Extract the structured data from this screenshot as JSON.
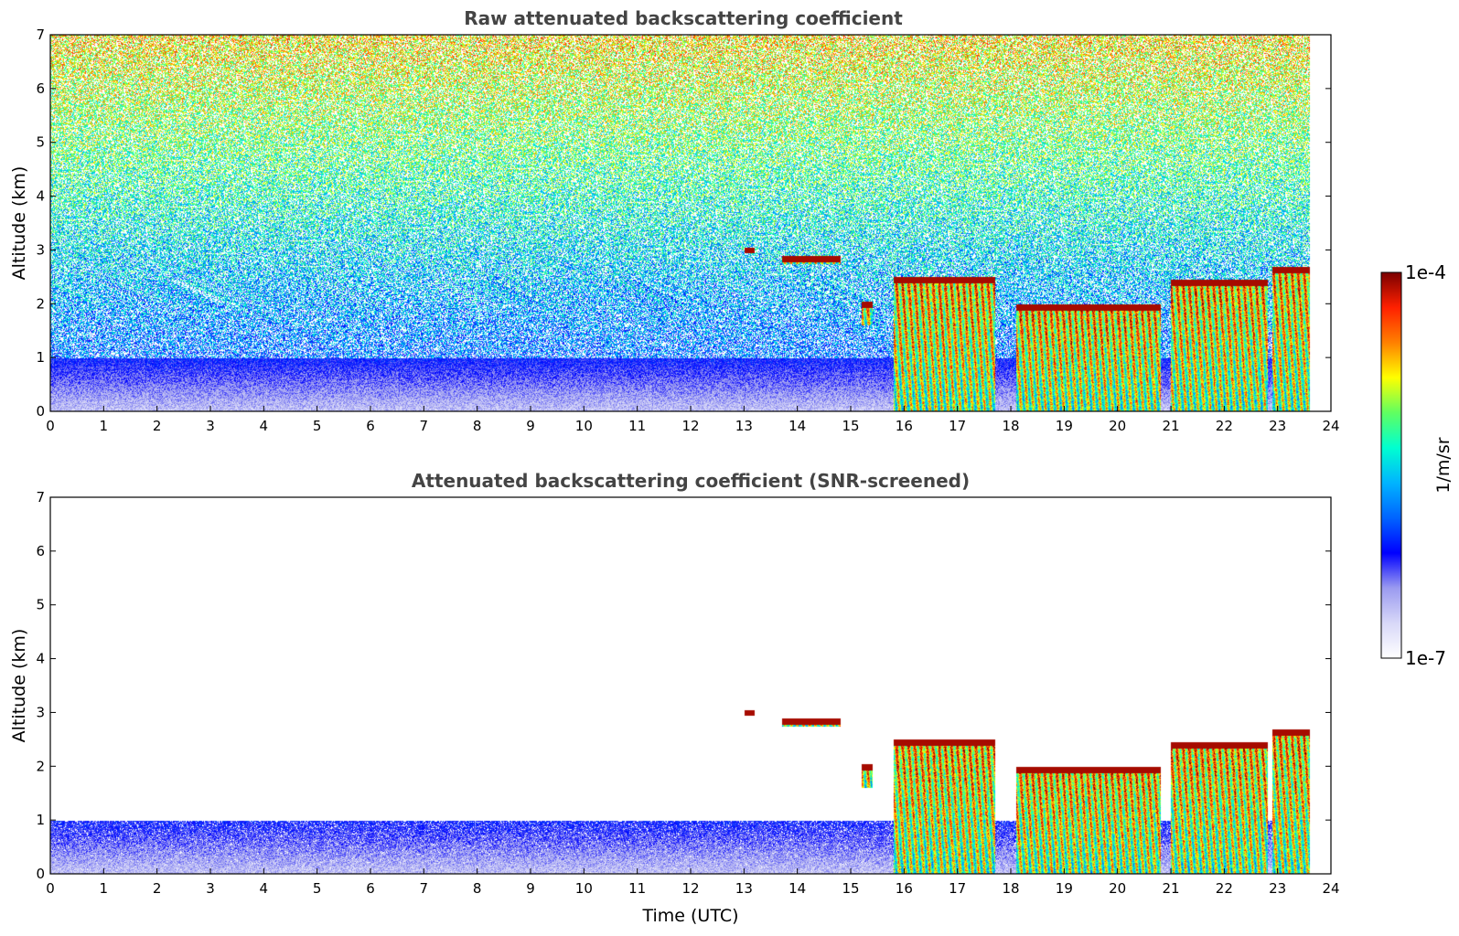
{
  "chart_data": [
    {
      "type": "heatmap",
      "id": "raw",
      "title": "Raw attenuated backscattering coefficient",
      "xlabel": "",
      "ylabel": "Altitude (km)",
      "xlim": [
        0,
        24
      ],
      "ylim": [
        0,
        7
      ],
      "xticks": [
        0,
        1,
        2,
        3,
        4,
        5,
        6,
        7,
        8,
        9,
        10,
        11,
        12,
        13,
        14,
        15,
        16,
        17,
        18,
        19,
        20,
        21,
        22,
        23,
        24
      ],
      "yticks": [
        0,
        1,
        2,
        3,
        4,
        5,
        6,
        7
      ],
      "data_end_time": 23.6,
      "cloud_layers": [
        {
          "t0": 13.0,
          "t1": 13.2,
          "z0": 2.95,
          "z1": 3.05
        },
        {
          "t0": 13.7,
          "t1": 14.8,
          "z0": 2.75,
          "z1": 2.9
        },
        {
          "t0": 15.2,
          "t1": 15.4,
          "z0": 1.6,
          "z1": 2.05
        },
        {
          "t0": 15.8,
          "t1": 17.7,
          "z0": 0.0,
          "z1": 2.5
        },
        {
          "t0": 18.1,
          "t1": 20.8,
          "z0": 0.0,
          "z1": 2.0
        },
        {
          "t0": 21.0,
          "t1": 22.8,
          "z0": 0.0,
          "z1": 2.45
        },
        {
          "t0": 22.9,
          "t1": 23.6,
          "z0": 0.0,
          "z1": 2.7
        }
      ]
    },
    {
      "type": "heatmap",
      "id": "screened",
      "title": "Attenuated backscattering coefficient (SNR-screened)",
      "xlabel": "Time (UTC)",
      "ylabel": "Altitude (km)",
      "xlim": [
        0,
        24
      ],
      "ylim": [
        0,
        7
      ],
      "xticks": [
        0,
        1,
        2,
        3,
        4,
        5,
        6,
        7,
        8,
        9,
        10,
        11,
        12,
        13,
        14,
        15,
        16,
        17,
        18,
        19,
        20,
        21,
        22,
        23,
        24
      ],
      "yticks": [
        0,
        1,
        2,
        3,
        4,
        5,
        6,
        7
      ],
      "data_end_time": 23.6,
      "boundary_layer_top_km": 1.0
    }
  ],
  "colorbar": {
    "label": "1/m/sr",
    "max_label": "1e-4",
    "min_label": "1e-7",
    "colormap": [
      "#ffffff",
      "#d8d8f8",
      "#9a9af0",
      "#0000ff",
      "#0064ff",
      "#00b4ff",
      "#00ffd0",
      "#60ff60",
      "#ffff00",
      "#ff8000",
      "#ff2000",
      "#7a0000"
    ]
  }
}
